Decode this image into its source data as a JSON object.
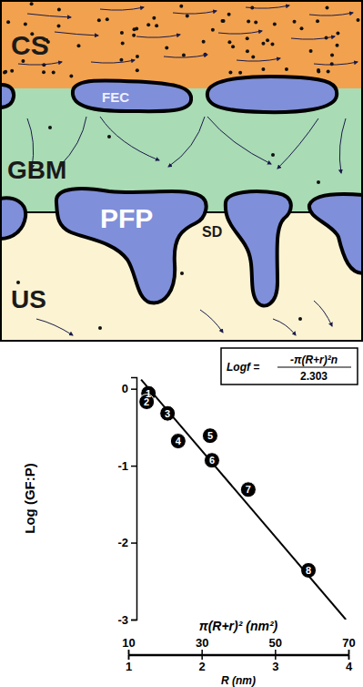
{
  "diagram": {
    "labels": {
      "cs": "CS",
      "fec": "FEC",
      "gbm": "GBM",
      "pfp": "PFP",
      "sd": "SD",
      "us": "US"
    }
  },
  "chart_data": {
    "type": "scatter",
    "y_label": "Log (GF:P)",
    "x_label": "π(R+r)²  (nm²)",
    "x2_label": "R (nm)",
    "xlim": [
      10,
      70
    ],
    "xticks": [
      10,
      30,
      50,
      70
    ],
    "x2lim": [
      1,
      4
    ],
    "x2ticks": [
      1,
      2,
      3,
      4
    ],
    "ylim": [
      -3,
      0.15
    ],
    "yticks": [
      0,
      -1,
      -2,
      -3
    ],
    "annotation": {
      "lhs": "Logf =",
      "numerator": "-π(R+r)²n",
      "denominator": "2.303"
    },
    "series": [
      {
        "type": "scatter",
        "marker": "circle",
        "color": "#000000",
        "x": [
          15.5,
          15.0,
          20.7,
          23.6,
          32.3,
          32.8,
          42.7,
          59.1
        ],
        "values": [
          -0.06,
          -0.17,
          -0.32,
          -0.68,
          -0.61,
          -0.93,
          -1.31,
          -2.36
        ],
        "labels": [
          "1",
          "2",
          "3",
          "4",
          "5",
          "6",
          "7",
          "8"
        ]
      },
      {
        "type": "line",
        "line_style": "solid",
        "color": "#000000",
        "x": [
          13.5,
          69.3
        ],
        "values": [
          0.12,
          -3.0
        ]
      }
    ]
  }
}
